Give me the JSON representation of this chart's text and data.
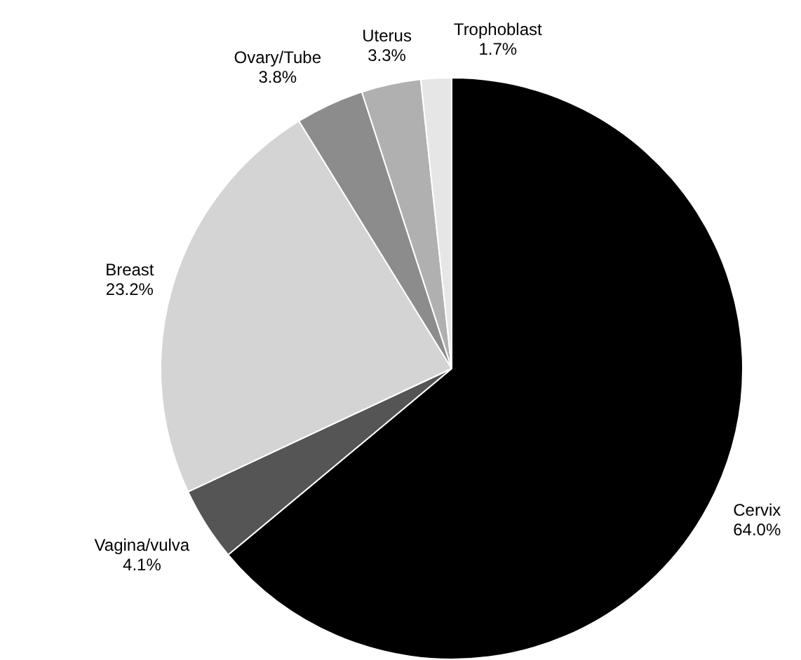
{
  "chart_data": {
    "type": "pie",
    "categories": [
      "Cervix",
      "Vagina/vulva",
      "Breast",
      "Ovary/Tube",
      "Uterus",
      "Trophoblast"
    ],
    "values": [
      64.0,
      4.1,
      23.2,
      3.8,
      3.3,
      1.7
    ],
    "value_labels": [
      "64.0%",
      "4.1%",
      "23.2%",
      "3.8%",
      "3.3%",
      "1.7%"
    ],
    "colors": [
      "#000000",
      "#555555",
      "#d4d4d4",
      "#8c8c8c",
      "#b0b0b0",
      "#e6e6e6"
    ],
    "legend": false
  }
}
